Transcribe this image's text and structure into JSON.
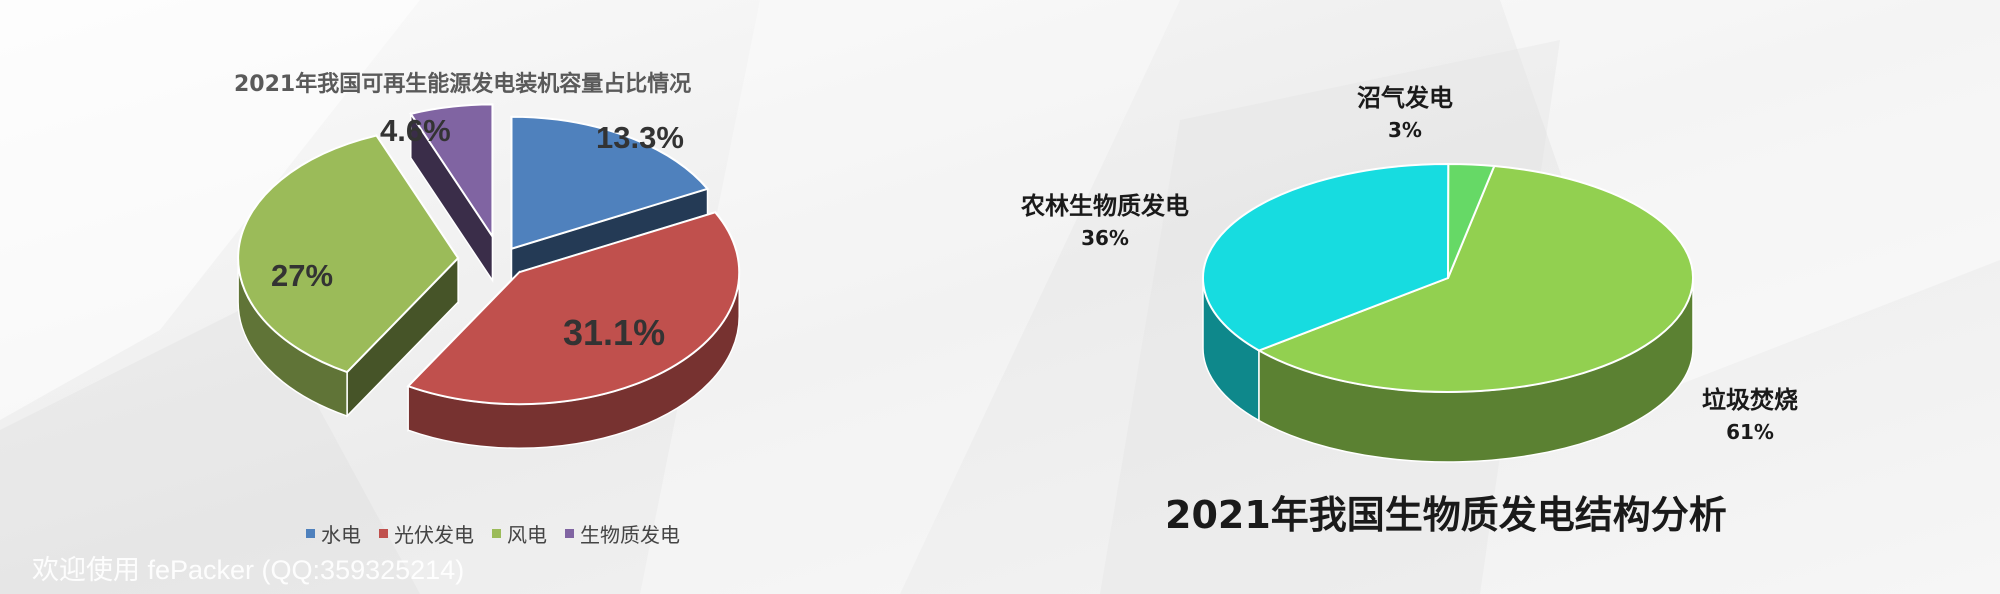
{
  "chart_data": [
    {
      "type": "pie",
      "title": "2021年我国可再生能源发电装机容量占比情况",
      "categories": [
        "水电",
        "光伏发电",
        "风电",
        "生物质发电"
      ],
      "values": [
        13.3,
        31.1,
        27,
        4.6
      ],
      "value_labels": [
        "13.3%",
        "31.1%",
        "27%",
        "4.6%"
      ],
      "colors": [
        "#4f81bd",
        "#c0504d",
        "#9bbb59",
        "#8064a2"
      ],
      "legend_position": "bottom",
      "exploded": true,
      "three_d": true
    },
    {
      "type": "pie",
      "title": "2021年我国生物质发电结构分析",
      "categories": [
        "垃圾焚烧",
        "农林生物质发电",
        "沼气发电"
      ],
      "values": [
        61,
        36,
        3
      ],
      "value_labels": [
        "61%",
        "36%",
        "3%"
      ],
      "colors": [
        "#92d050",
        "#17dce0",
        "#66d966"
      ],
      "legend_position": "none",
      "three_d": true
    }
  ],
  "watermark": "欢迎使用 fePacker (QQ:359325214)"
}
